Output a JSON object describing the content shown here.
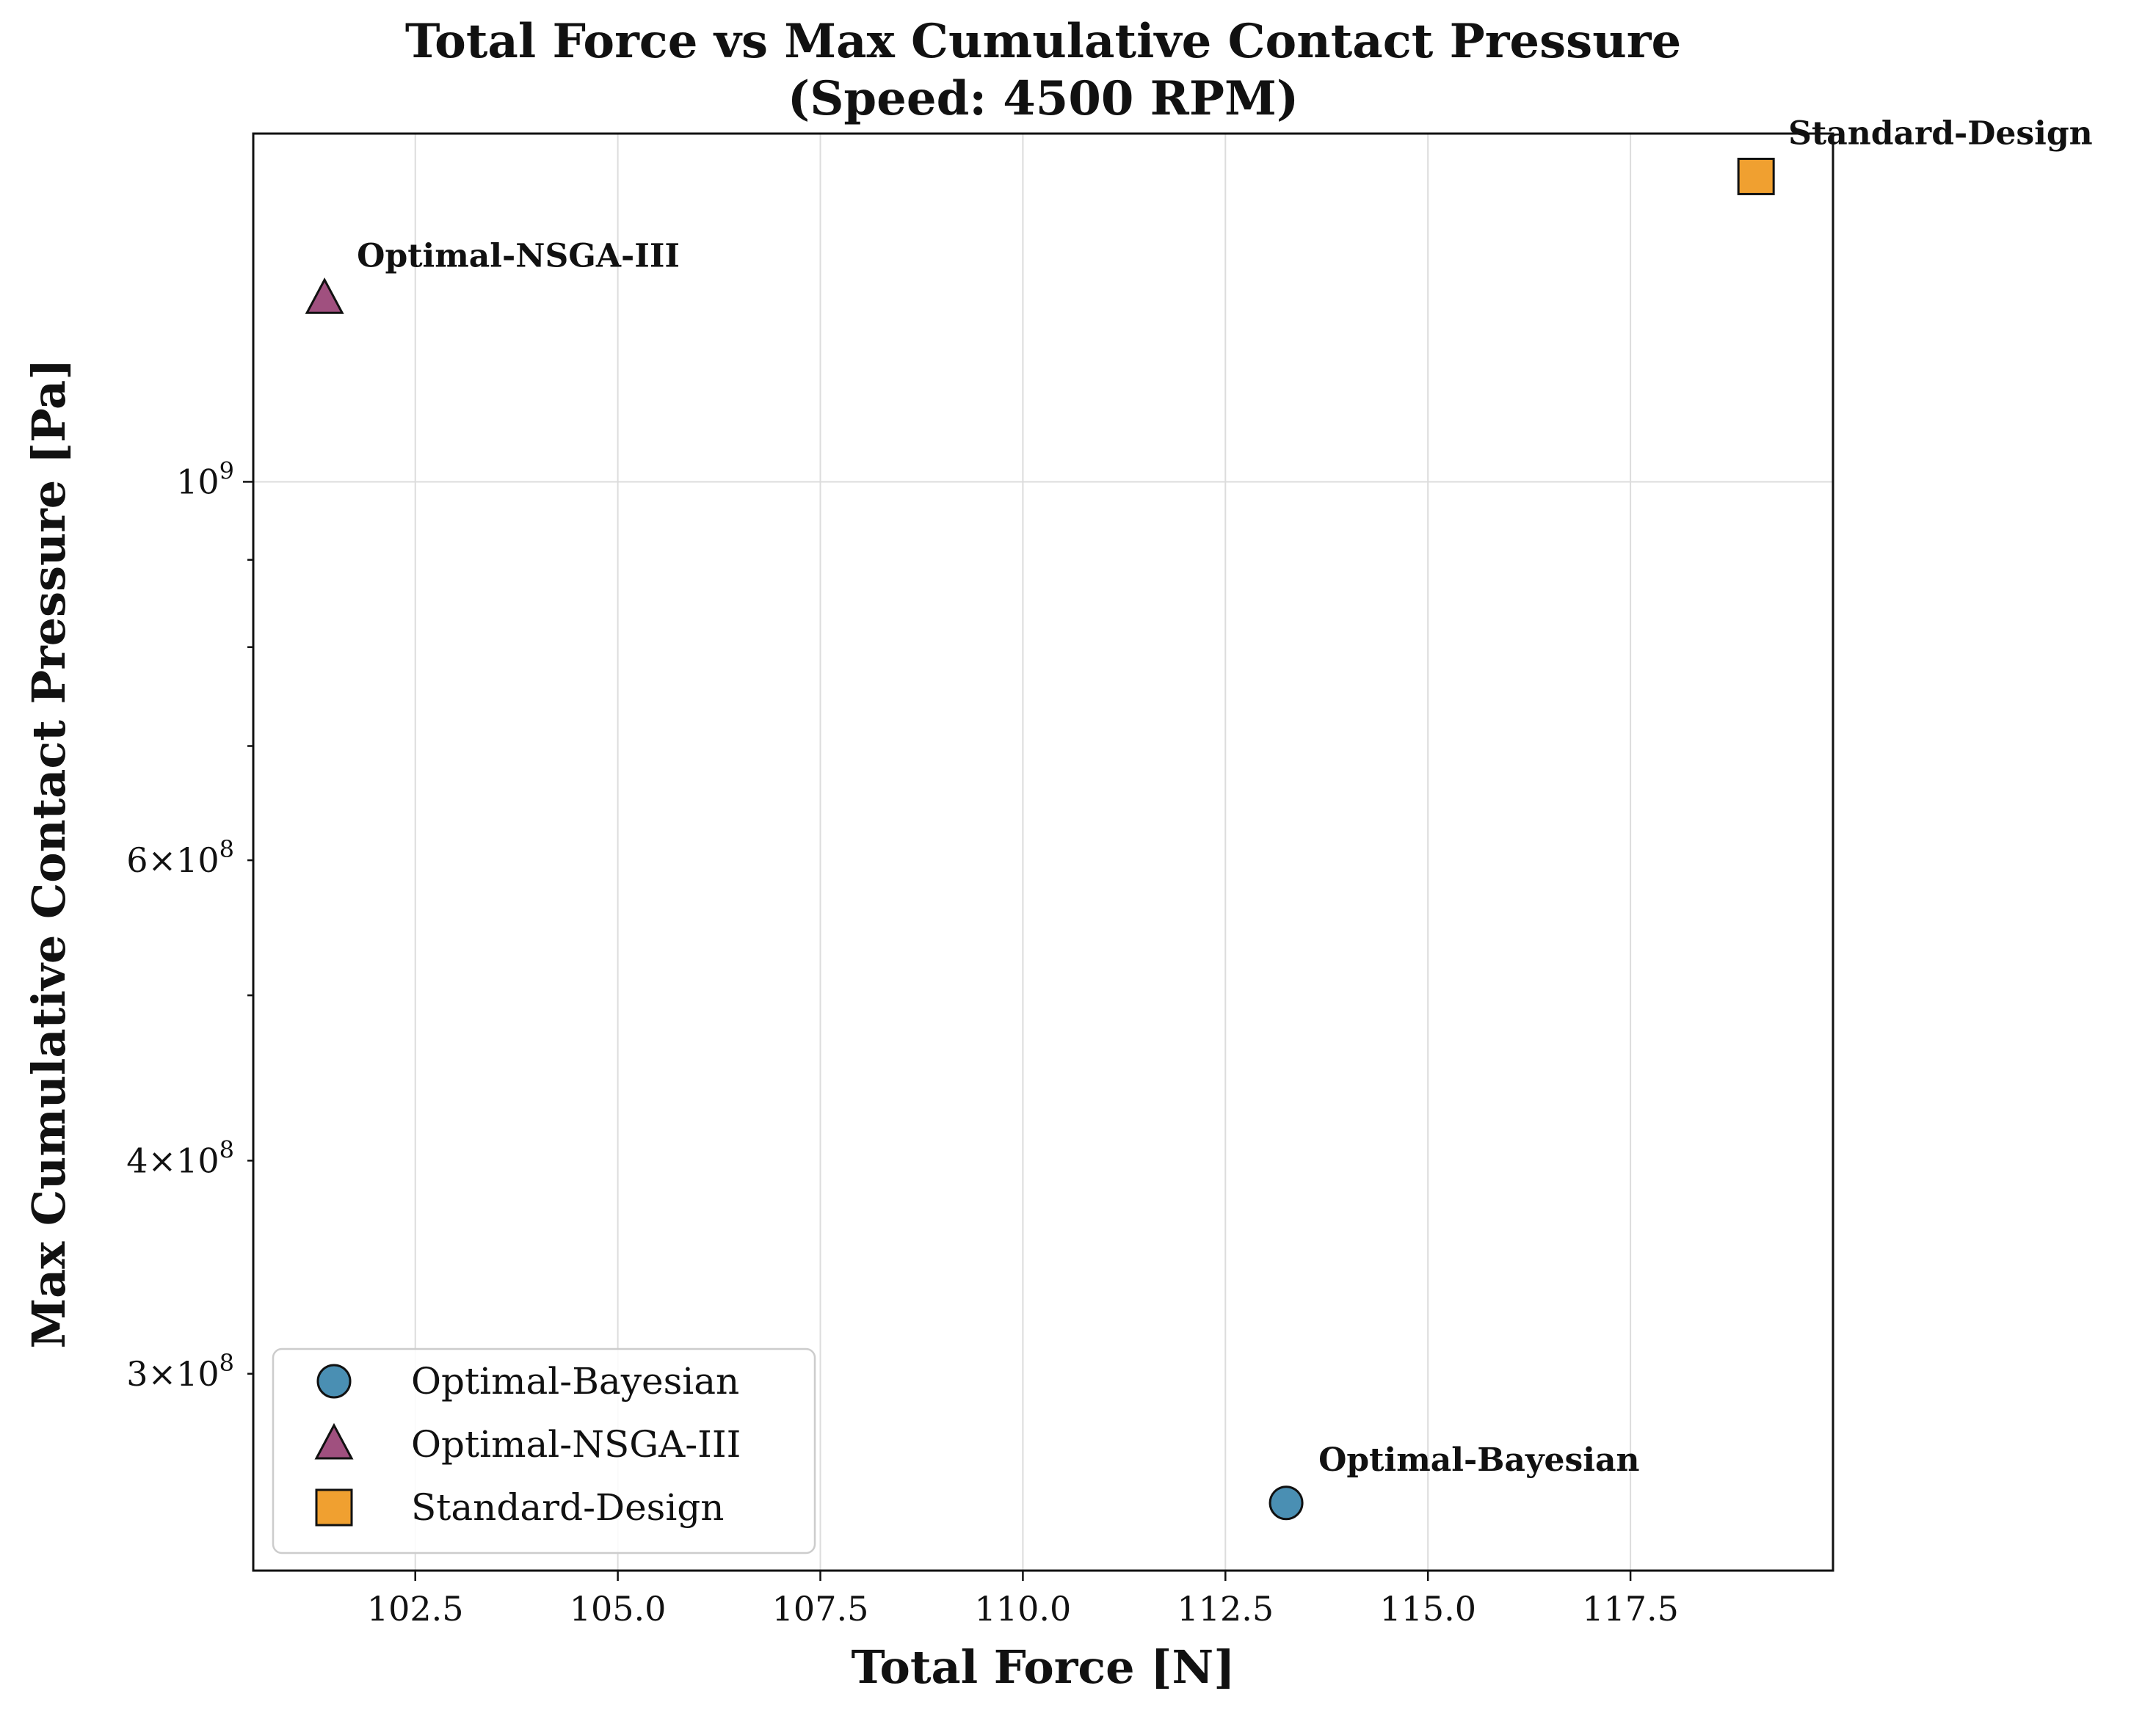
{
  "chart_data": {
    "type": "scatter",
    "title": "Total Force vs Max Cumulative Contact Pressure",
    "subtitle": "(Speed: 4500 RPM)",
    "xlabel": "Total Force [N]",
    "ylabel": "Max Cumulative Contact Pressure [Pa]",
    "xlim": [
      100.5,
      120.0
    ],
    "ylim": [
      230000000,
      1600000000
    ],
    "yscale": "log",
    "grid": true,
    "legend_position": "lower-left",
    "x_ticks": [
      102.5,
      105.0,
      107.5,
      110.0,
      112.5,
      115.0,
      117.5
    ],
    "x_tick_labels": [
      "102.5",
      "105.0",
      "107.5",
      "110.0",
      "112.5",
      "115.0",
      "117.5"
    ],
    "y_major_ticks": [
      {
        "value": 1000000000,
        "mantissa": "",
        "exponent": "9"
      }
    ],
    "y_minor_labeled_ticks": [
      {
        "value": 600000000,
        "mantissa": "6",
        "exponent": "8"
      },
      {
        "value": 400000000,
        "mantissa": "4",
        "exponent": "8"
      },
      {
        "value": 300000000,
        "mantissa": "3",
        "exponent": "8"
      }
    ],
    "y_minor_unlabeled_ticks": [
      900000000,
      800000000,
      700000000,
      500000000
    ],
    "series": [
      {
        "name": "Optimal-Bayesian",
        "x": 113.25,
        "y": 252000000,
        "marker": "circle",
        "color": "#4a8fb3",
        "annotation": "Optimal-Bayesian"
      },
      {
        "name": "Optimal-NSGA-III",
        "x": 101.38,
        "y": 1280000000,
        "marker": "triangle",
        "color": "#a0507f",
        "annotation": "Optimal-NSGA-III"
      },
      {
        "name": "Standard-Design",
        "x": 119.05,
        "y": 1510000000,
        "marker": "square",
        "color": "#f0a030",
        "annotation": "Standard-Design"
      }
    ]
  }
}
